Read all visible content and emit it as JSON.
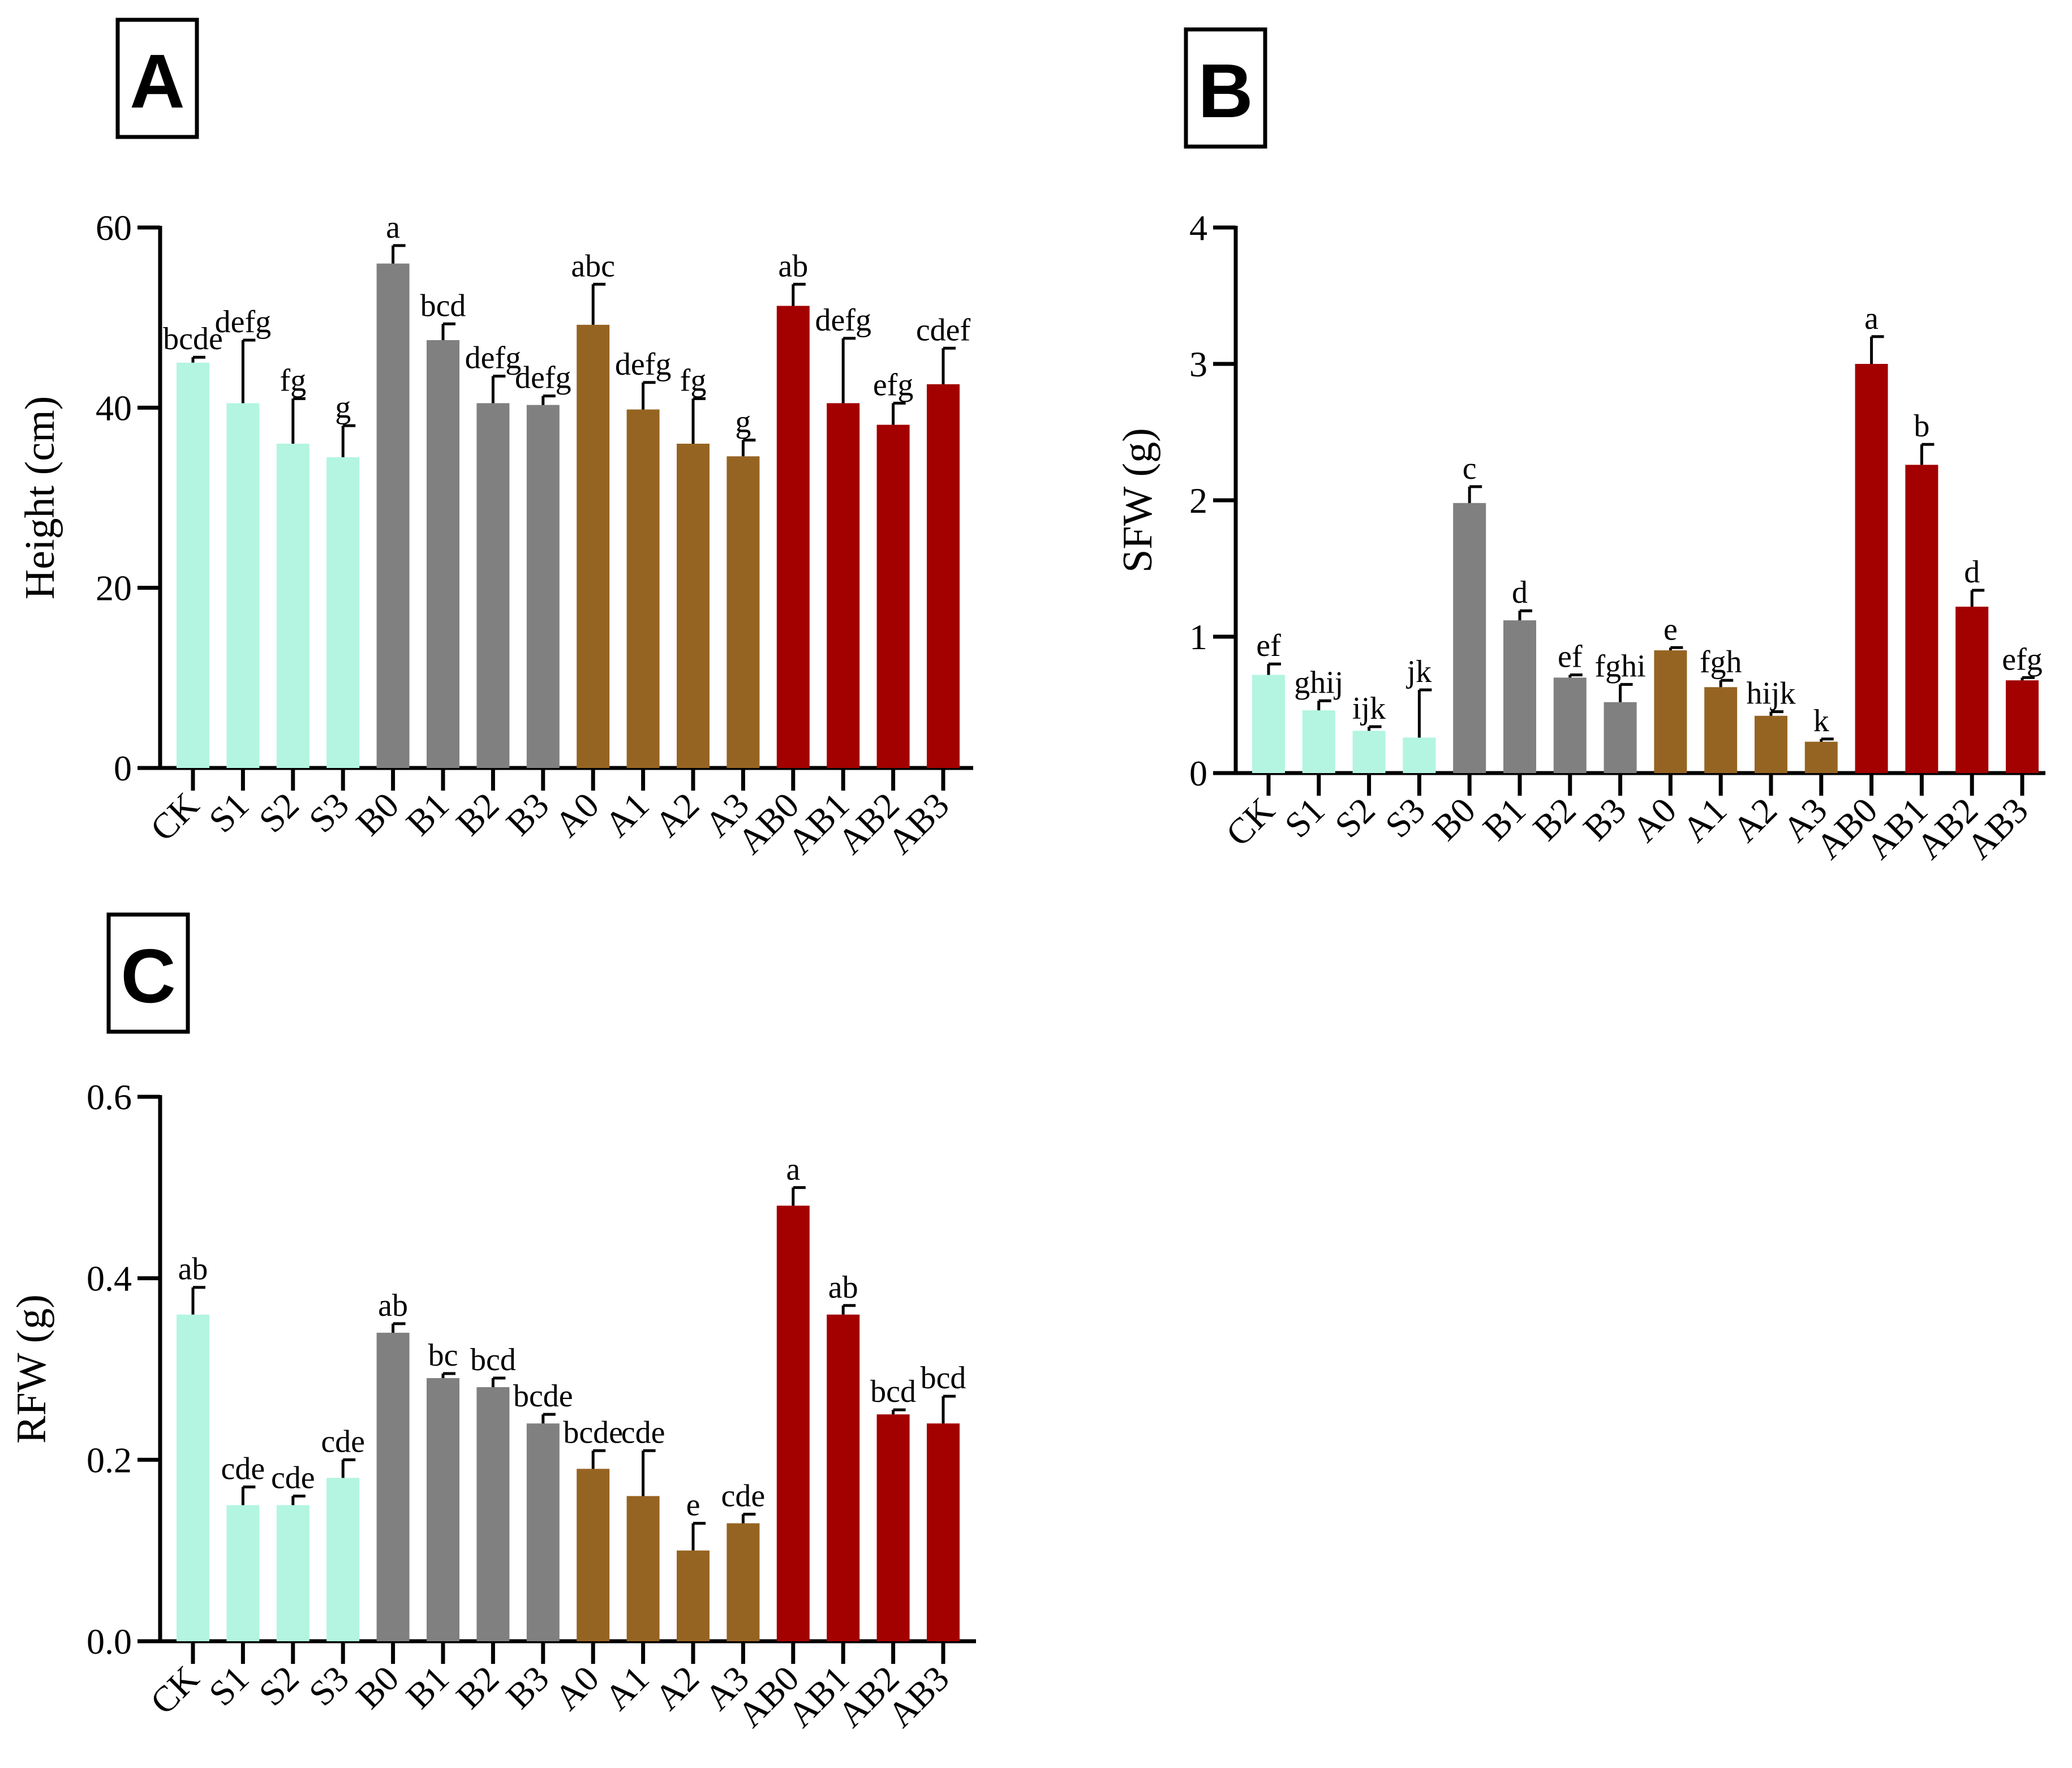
{
  "colors": {
    "S": "#b3f5e1",
    "B": "#808080",
    "A": "#966422",
    "AB": "#a30000",
    "axis": "#000000"
  },
  "chart_data": [
    {
      "panel": "A",
      "type": "bar",
      "ylabel": "Height (cm)",
      "ylim": [
        0,
        60
      ],
      "yticks": [
        0,
        20,
        40,
        60
      ],
      "categories": [
        "CK",
        "S1",
        "S2",
        "S3",
        "B0",
        "B1",
        "B2",
        "B3",
        "A0",
        "A1",
        "A2",
        "A3",
        "AB0",
        "AB1",
        "AB2",
        "AB3"
      ],
      "groups": [
        "S",
        "S",
        "S",
        "S",
        "B",
        "B",
        "B",
        "B",
        "A",
        "A",
        "A",
        "A",
        "AB",
        "AB",
        "AB",
        "AB"
      ],
      "values": [
        45,
        40.5,
        36,
        34.5,
        56,
        47.5,
        40.5,
        40.3,
        49.2,
        39.8,
        36,
        34.6,
        51.3,
        40.5,
        38.1,
        42.6
      ],
      "errors": [
        0.6,
        7,
        5,
        3.5,
        2,
        1.8,
        3,
        1,
        4.5,
        3,
        5,
        1.8,
        2.4,
        7.2,
        2.4,
        4
      ],
      "letters": [
        "bcde",
        "defg",
        "fg",
        "g",
        "a",
        "bcd",
        "defg",
        "defg",
        "abc",
        "defg",
        "fg",
        "g",
        "ab",
        "defg",
        "efg",
        "cdef"
      ]
    },
    {
      "panel": "B",
      "type": "bar",
      "ylabel": "SFW (g)",
      "ylim": [
        0,
        4
      ],
      "yticks": [
        0,
        1,
        2,
        3,
        4
      ],
      "categories": [
        "CK",
        "S1",
        "S2",
        "S3",
        "B0",
        "B1",
        "B2",
        "B3",
        "A0",
        "A1",
        "A2",
        "A3",
        "AB0",
        "AB1",
        "AB2",
        "AB3"
      ],
      "groups": [
        "S",
        "S",
        "S",
        "S",
        "B",
        "B",
        "B",
        "B",
        "A",
        "A",
        "A",
        "A",
        "AB",
        "AB",
        "AB",
        "AB"
      ],
      "values": [
        0.72,
        0.46,
        0.31,
        0.26,
        1.98,
        1.12,
        0.7,
        0.52,
        0.9,
        0.63,
        0.42,
        0.23,
        3.0,
        2.26,
        1.22,
        0.68
      ],
      "errors": [
        0.08,
        0.07,
        0.03,
        0.35,
        0.12,
        0.07,
        0.02,
        0.13,
        0.02,
        0.05,
        0.03,
        0.02,
        0.2,
        0.15,
        0.12,
        0.02
      ],
      "letters": [
        "ef",
        "ghij",
        "ijk",
        "jk",
        "c",
        "d",
        "ef",
        "fghi",
        "e",
        "fgh",
        "hijk",
        "k",
        "a",
        "b",
        "d",
        "efg"
      ]
    },
    {
      "panel": "C",
      "type": "bar",
      "ylabel": "RFW (g)",
      "ylim": [
        0,
        0.6
      ],
      "yticks": [
        "0.0",
        "0.2",
        "0.4",
        "0.6"
      ],
      "categories": [
        "CK",
        "S1",
        "S2",
        "S3",
        "B0",
        "B1",
        "B2",
        "B3",
        "A0",
        "A1",
        "A2",
        "A3",
        "AB0",
        "AB1",
        "AB2",
        "AB3"
      ],
      "groups": [
        "S",
        "S",
        "S",
        "S",
        "B",
        "B",
        "B",
        "B",
        "A",
        "A",
        "A",
        "A",
        "AB",
        "AB",
        "AB",
        "AB"
      ],
      "values": [
        0.36,
        0.15,
        0.15,
        0.18,
        0.34,
        0.29,
        0.28,
        0.24,
        0.19,
        0.16,
        0.1,
        0.13,
        0.48,
        0.36,
        0.25,
        0.24
      ],
      "errors": [
        0.03,
        0.02,
        0.01,
        0.02,
        0.01,
        0.005,
        0.01,
        0.01,
        0.02,
        0.05,
        0.03,
        0.01,
        0.02,
        0.01,
        0.005,
        0.03
      ],
      "letters": [
        "ab",
        "cde",
        "cde",
        "cde",
        "ab",
        "bc",
        "bcd",
        "bcde",
        "bcde",
        "cde",
        "e",
        "cde",
        "a",
        "ab",
        "bcd",
        "bcd"
      ]
    }
  ]
}
